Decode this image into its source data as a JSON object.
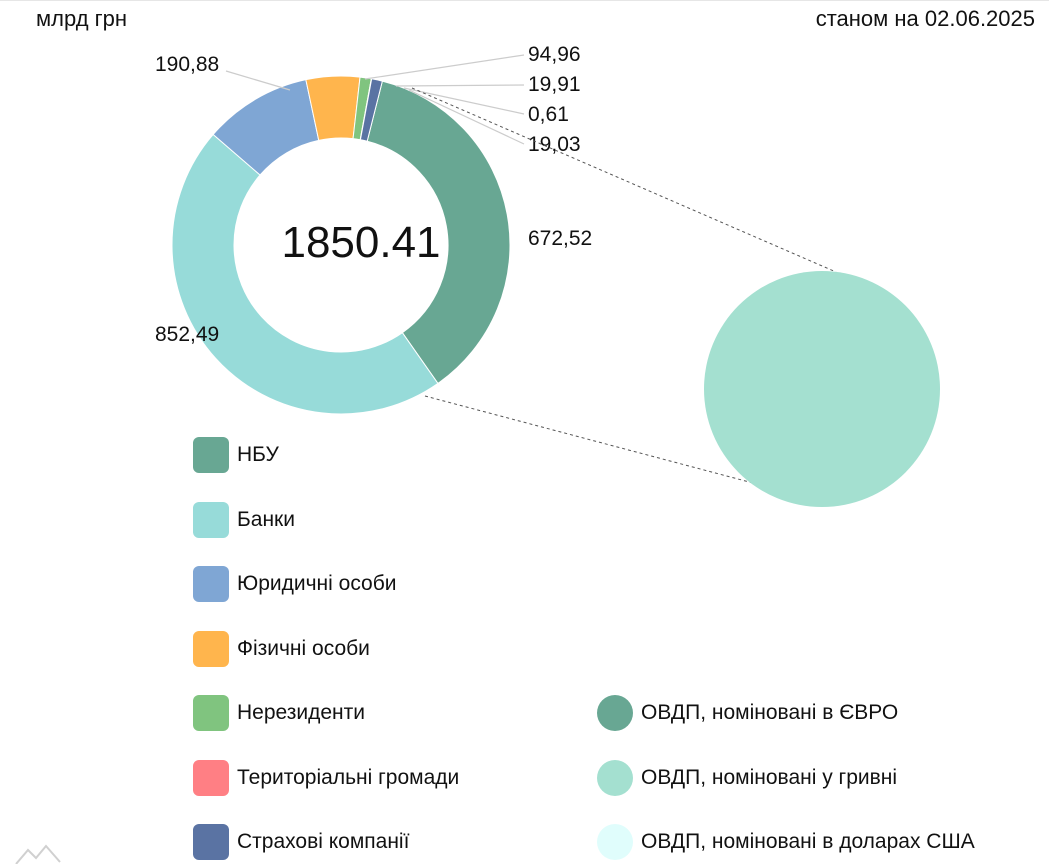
{
  "header": {
    "unit": "млрд грн",
    "as_of": "станом на 02.06.2025"
  },
  "chart_data": {
    "type": "pie",
    "variant": "donut-with-breakout-pie",
    "center_label": "1850.41",
    "series": [
      {
        "name": "НБУ",
        "value": 672.52,
        "label": "672,52",
        "color": "#68a793"
      },
      {
        "name": "Банки",
        "value": 852.49,
        "label": "852,49",
        "color": "#97dbd9"
      },
      {
        "name": "Юридичні особи",
        "value": 190.88,
        "label": "190,88",
        "color": "#7fa6d4"
      },
      {
        "name": "Фізичні особи",
        "value": 94.96,
        "label": "94,96",
        "color": "#ffb54d"
      },
      {
        "name": "Нерезиденти",
        "value": 19.91,
        "label": "19,91",
        "color": "#80c47f"
      },
      {
        "name": "Територіальні громади",
        "value": 0.61,
        "label": "0,61",
        "color": "#ff7f84"
      },
      {
        "name": "Страхові компанії",
        "value": 19.03,
        "label": "19,03",
        "color": "#5a73a3"
      }
    ],
    "breakout": {
      "series": [
        {
          "name": "ОВДП, номіновані в ЄВРО",
          "color": "#68a793"
        },
        {
          "name": "ОВДП, номіновані у гривні",
          "color": "#a4e0d0"
        },
        {
          "name": "ОВДП, номіновані в доларах США",
          "color": "#e0fdfc"
        }
      ]
    },
    "legend_position": "bottom"
  }
}
